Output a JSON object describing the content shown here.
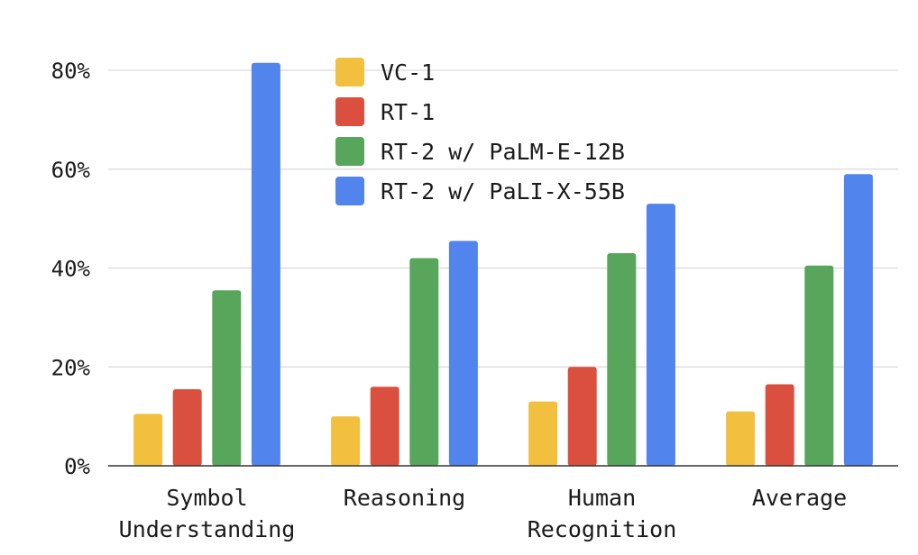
{
  "chart_data": {
    "type": "bar",
    "categories": [
      [
        "Symbol",
        "Understanding"
      ],
      [
        "Reasoning"
      ],
      [
        "Human",
        "Recognition"
      ],
      [
        "Average"
      ]
    ],
    "series": [
      {
        "name": "VC-1",
        "color": "#F2C03E",
        "values": [
          10.5,
          10,
          13,
          11
        ]
      },
      {
        "name": "RT-1",
        "color": "#DB4F3F",
        "values": [
          15.5,
          16,
          20,
          16.5
        ]
      },
      {
        "name": "RT-2 w/ PaLM-E-12B",
        "color": "#57A65C",
        "values": [
          35.5,
          42,
          43,
          40.5
        ]
      },
      {
        "name": "RT-2 w/ PaLI-X-55B",
        "color": "#5284EE",
        "values": [
          81.5,
          45.5,
          53,
          59
        ]
      }
    ],
    "yticks": [
      "0%",
      "20%",
      "40%",
      "60%",
      "80%"
    ],
    "ytick_values": [
      0,
      20,
      40,
      60,
      80
    ],
    "ylim": [
      0,
      80
    ],
    "grid": true,
    "legend_position": "top-center"
  }
}
